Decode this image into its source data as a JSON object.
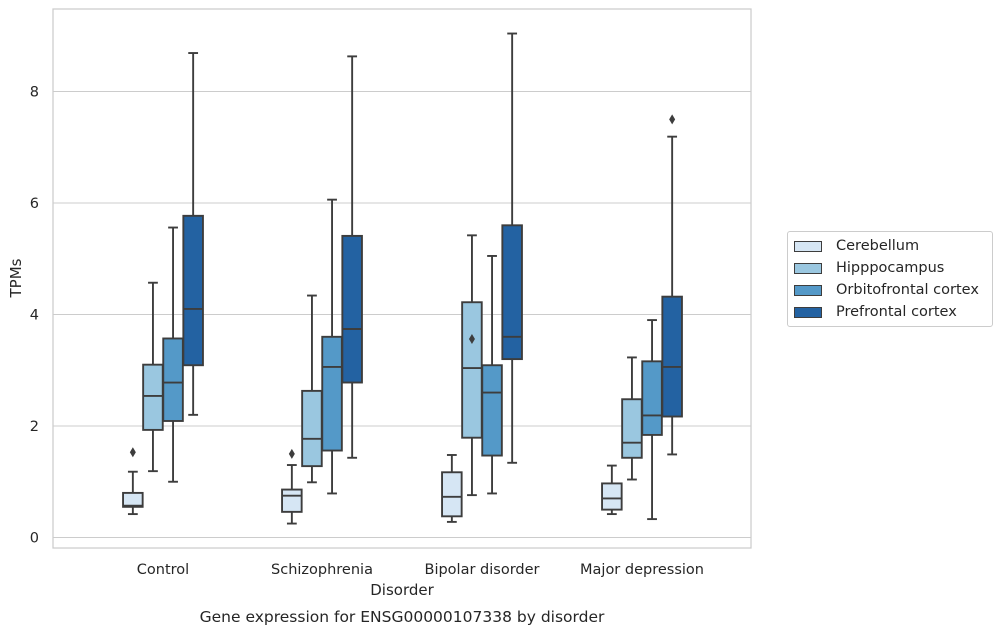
{
  "chart_data": {
    "type": "box",
    "title": "Gene expression for ENSG00000107338 by disorder",
    "xlabel": "Disorder",
    "ylabel": "TPMs",
    "ylim": [
      -0.2,
      9.5
    ],
    "yticks": [
      0,
      2,
      4,
      6,
      8
    ],
    "grid": "horizontal",
    "legend_position": "right",
    "categories": [
      "Control",
      "Schizophrenia",
      "Bipolar disorder",
      "Major depression"
    ],
    "series": [
      {
        "name": "Cerebellum",
        "color": "#d6e6f4",
        "boxes": [
          {
            "whisker_low": 0.42,
            "q1": 0.55,
            "median": 0.57,
            "q3": 0.8,
            "whisker_high": 1.18,
            "outliers": [
              1.53
            ]
          },
          {
            "whisker_low": 0.25,
            "q1": 0.46,
            "median": 0.75,
            "q3": 0.86,
            "whisker_high": 1.3,
            "outliers": [
              1.5
            ]
          },
          {
            "whisker_low": 0.28,
            "q1": 0.38,
            "median": 0.73,
            "q3": 1.17,
            "whisker_high": 1.48,
            "outliers": []
          },
          {
            "whisker_low": 0.42,
            "q1": 0.5,
            "median": 0.7,
            "q3": 0.97,
            "whisker_high": 1.29,
            "outliers": []
          }
        ]
      },
      {
        "name": "Hipppocampus",
        "color": "#9ac7e0",
        "boxes": [
          {
            "whisker_low": 1.19,
            "q1": 1.93,
            "median": 2.54,
            "q3": 3.1,
            "whisker_high": 4.57,
            "outliers": []
          },
          {
            "whisker_low": 0.99,
            "q1": 1.28,
            "median": 1.77,
            "q3": 2.63,
            "whisker_high": 4.34,
            "outliers": []
          },
          {
            "whisker_low": 0.76,
            "q1": 1.79,
            "median": 3.04,
            "q3": 4.22,
            "whisker_high": 5.42,
            "outliers": [
              3.56
            ]
          },
          {
            "whisker_low": 1.04,
            "q1": 1.43,
            "median": 1.7,
            "q3": 2.48,
            "whisker_high": 3.23,
            "outliers": []
          }
        ]
      },
      {
        "name": "Orbitofrontal cortex",
        "color": "#5499c8",
        "boxes": [
          {
            "whisker_low": 1.0,
            "q1": 2.09,
            "median": 2.78,
            "q3": 3.57,
            "whisker_high": 5.56,
            "outliers": []
          },
          {
            "whisker_low": 0.79,
            "q1": 1.56,
            "median": 3.06,
            "q3": 3.6,
            "whisker_high": 6.06,
            "outliers": []
          },
          {
            "whisker_low": 0.79,
            "q1": 1.47,
            "median": 2.6,
            "q3": 3.09,
            "whisker_high": 5.05,
            "outliers": []
          },
          {
            "whisker_low": 0.33,
            "q1": 1.84,
            "median": 2.19,
            "q3": 3.16,
            "whisker_high": 3.9,
            "outliers": []
          }
        ]
      },
      {
        "name": "Prefrontal cortex",
        "color": "#2362a2",
        "boxes": [
          {
            "whisker_low": 2.2,
            "q1": 3.09,
            "median": 4.1,
            "q3": 5.77,
            "whisker_high": 8.69,
            "outliers": []
          },
          {
            "whisker_low": 1.43,
            "q1": 2.78,
            "median": 3.74,
            "q3": 5.41,
            "whisker_high": 8.63,
            "outliers": []
          },
          {
            "whisker_low": 1.34,
            "q1": 3.2,
            "median": 3.6,
            "q3": 5.6,
            "whisker_high": 9.04,
            "outliers": []
          },
          {
            "whisker_low": 1.49,
            "q1": 2.17,
            "median": 3.06,
            "q3": 4.32,
            "whisker_high": 7.19,
            "outliers": [
              7.5
            ]
          }
        ]
      }
    ]
  }
}
